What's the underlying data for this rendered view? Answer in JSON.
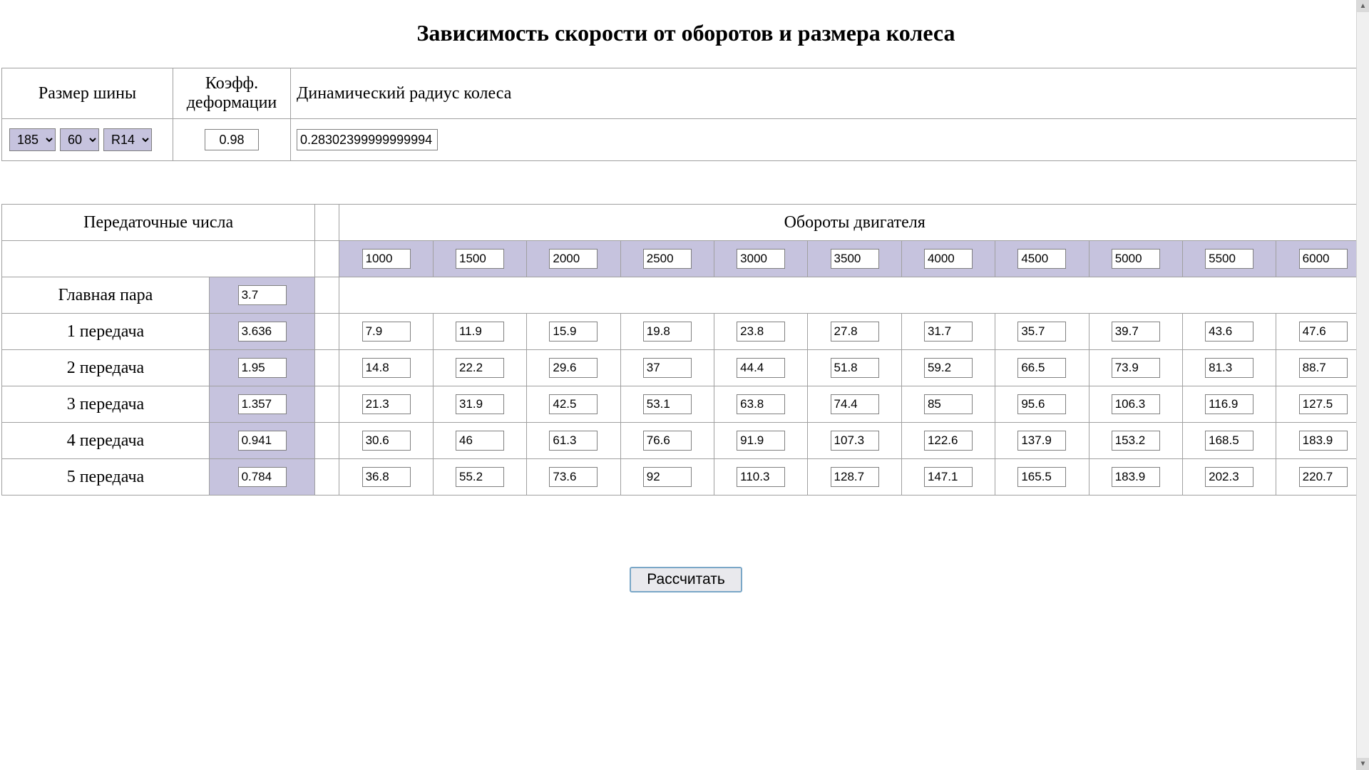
{
  "title": "Зависимость скорости от оборотов и размера колеса",
  "upper": {
    "headers": {
      "tire": "Размер шины",
      "deform": "Коэфф. деформации",
      "radius": "Динамический радиус колеса"
    },
    "tire_selects": {
      "width": "185",
      "ratio": "60",
      "rim": "R14"
    },
    "deform_value": "0.98",
    "radius_value": "0.28302399999999994"
  },
  "lower": {
    "head_left": "Передаточные числа",
    "head_right": "Обороты двигателя",
    "rpm": [
      "1000",
      "1500",
      "2000",
      "2500",
      "3000",
      "3500",
      "4000",
      "4500",
      "5000",
      "5500",
      "6000"
    ],
    "main_pair_label": "Главная пара",
    "main_pair_value": "3.7",
    "gears": [
      {
        "label": "1 передача",
        "ratio": "3.636",
        "speeds": [
          "7.9",
          "11.9",
          "15.9",
          "19.8",
          "23.8",
          "27.8",
          "31.7",
          "35.7",
          "39.7",
          "43.6",
          "47.6"
        ]
      },
      {
        "label": "2 передача",
        "ratio": "1.95",
        "speeds": [
          "14.8",
          "22.2",
          "29.6",
          "37",
          "44.4",
          "51.8",
          "59.2",
          "66.5",
          "73.9",
          "81.3",
          "88.7"
        ]
      },
      {
        "label": "3 передача",
        "ratio": "1.357",
        "speeds": [
          "21.3",
          "31.9",
          "42.5",
          "53.1",
          "63.8",
          "74.4",
          "85",
          "95.6",
          "106.3",
          "116.9",
          "127.5"
        ]
      },
      {
        "label": "4 передача",
        "ratio": "0.941",
        "speeds": [
          "30.6",
          "46",
          "61.3",
          "76.6",
          "91.9",
          "107.3",
          "122.6",
          "137.9",
          "153.2",
          "168.5",
          "183.9"
        ]
      },
      {
        "label": "5 передача",
        "ratio": "0.784",
        "speeds": [
          "36.8",
          "55.2",
          "73.6",
          "92",
          "110.3",
          "128.7",
          "147.1",
          "165.5",
          "183.9",
          "202.3",
          "220.7"
        ]
      }
    ]
  },
  "calc_label": "Рассчитать",
  "colors": {
    "accent_bg": "#c6c3de",
    "border": "#a0a0a0",
    "button_border": "#7aa7c7"
  },
  "col_widths": {
    "label_col": 290,
    "ratio_col": 148,
    "spacer_col": 34,
    "rpm_col": 131
  }
}
